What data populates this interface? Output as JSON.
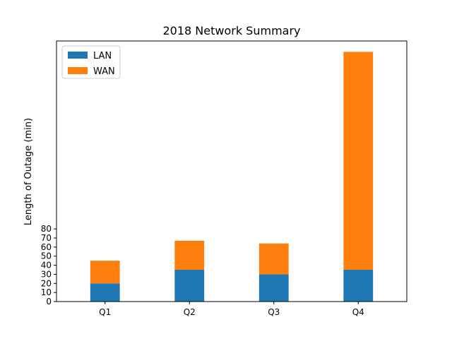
{
  "chart_data": {
    "type": "bar",
    "stacked": true,
    "title": "2018 Network Summary",
    "xlabel": "",
    "ylabel": "Length of Outage (min)",
    "categories": [
      "Q1",
      "Q2",
      "Q3",
      "Q4"
    ],
    "series": [
      {
        "name": "LAN",
        "color": "#1f77b4",
        "values": [
          20,
          35,
          30,
          35
        ]
      },
      {
        "name": "WAN",
        "color": "#ff7f0e",
        "values": [
          25,
          32,
          34,
          240
        ]
      }
    ],
    "yticks": [
      "0",
      "10",
      "20",
      "30",
      "40",
      "50",
      "60",
      "70",
      "80"
    ],
    "ylim": [
      0,
      287
    ],
    "legend_position": "top-left",
    "grid": false
  }
}
